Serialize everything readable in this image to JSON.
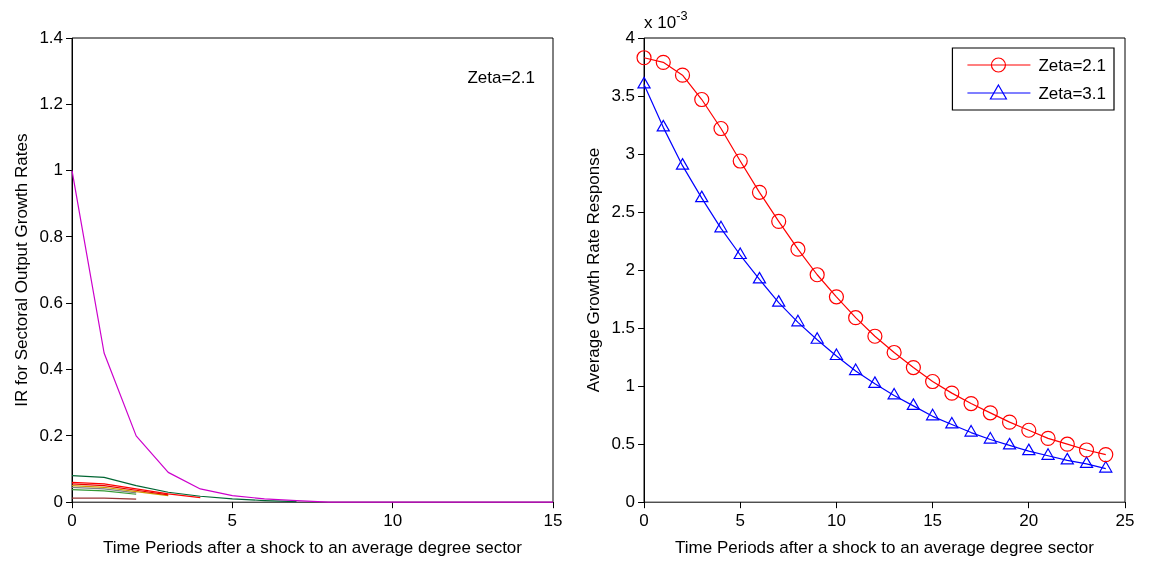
{
  "chart_data": [
    {
      "type": "line",
      "xlabel": "Time Periods after a shock to an average degree sector",
      "ylabel": "IR for Sectoral Output Growth Rates",
      "annotations": [
        "Zeta=2.1"
      ],
      "x": [
        0,
        1,
        2,
        3,
        4,
        5,
        6,
        7,
        8,
        9,
        10,
        11,
        12,
        13,
        14,
        15
      ],
      "xlim": [
        0,
        15
      ],
      "xticks": [
        0,
        5,
        10,
        15
      ],
      "ylim": [
        0,
        1.4
      ],
      "yticks": [
        0,
        0.2,
        0.4,
        0.6,
        0.8,
        1,
        1.2,
        1.4
      ],
      "grid": false,
      "legend": false,
      "marker": "none",
      "line_style": "solid",
      "series": [
        {
          "color": "#cc00cc",
          "values": [
            1,
            0.45,
            0.2,
            0.09,
            0.04,
            0.02,
            0.01,
            0.005,
            0,
            0,
            0,
            0,
            0,
            0,
            0,
            0
          ]
        },
        {
          "color": "#006633",
          "values": [
            0.08,
            0.075,
            0.05,
            0.03,
            0.018,
            0.01,
            0.005,
            0.002,
            null,
            null,
            null,
            null,
            null,
            null,
            null,
            null
          ]
        },
        {
          "color": "#ff0000",
          "values": [
            0.06,
            0.055,
            0.04,
            0.025,
            0.014,
            null,
            null,
            null,
            null,
            null,
            null,
            null,
            null,
            null,
            null,
            null
          ]
        },
        {
          "color": "#e60000",
          "values": [
            0.055,
            0.05,
            0.036,
            0.022,
            null,
            null,
            null,
            null,
            null,
            null,
            null,
            null,
            null,
            null,
            null,
            null
          ]
        },
        {
          "color": "#cc9900",
          "values": [
            0.05,
            0.045,
            0.032,
            0.02,
            null,
            null,
            null,
            null,
            null,
            null,
            null,
            null,
            null,
            null,
            null,
            null
          ]
        },
        {
          "color": "#808080",
          "values": [
            0.045,
            0.04,
            0.028,
            null,
            null,
            null,
            null,
            null,
            null,
            null,
            null,
            null,
            null,
            null,
            null,
            null
          ]
        },
        {
          "color": "#339933",
          "values": [
            0.038,
            0.034,
            0.024,
            null,
            null,
            null,
            null,
            null,
            null,
            null,
            null,
            null,
            null,
            null,
            null,
            null
          ]
        },
        {
          "color": "#993333",
          "values": [
            0.012,
            0.012,
            0.009,
            null,
            null,
            null,
            null,
            null,
            null,
            null,
            null,
            null,
            null,
            null,
            null,
            null
          ]
        }
      ]
    },
    {
      "type": "line",
      "xlabel": "Time Periods after a shock to an average degree sector",
      "ylabel": "Average Growth Rate Response",
      "annotations": [
        "x 10$^{-3}$"
      ],
      "x": [
        0,
        1,
        2,
        3,
        4,
        5,
        6,
        7,
        8,
        9,
        10,
        11,
        12,
        13,
        14,
        15,
        16,
        17,
        18,
        19,
        20,
        21,
        22,
        23,
        24
      ],
      "xlim": [
        0,
        25
      ],
      "xticks": [
        0,
        5,
        10,
        15,
        20,
        25
      ],
      "ylim": [
        0,
        4
      ],
      "yticks": [
        0,
        0.5,
        1,
        1.5,
        2,
        2.5,
        3,
        3.5,
        4
      ],
      "grid": false,
      "legend": "top right",
      "line_style": "solid",
      "series": [
        {
          "name": "Zeta=2.1",
          "color": "#ff0000",
          "marker": "circle",
          "values": [
            3.83,
            3.79,
            3.68,
            3.47,
            3.22,
            2.94,
            2.67,
            2.42,
            2.18,
            1.96,
            1.77,
            1.59,
            1.43,
            1.29,
            1.16,
            1.04,
            0.94,
            0.85,
            0.77,
            0.69,
            0.62,
            0.55,
            0.5,
            0.45,
            0.41
          ]
        },
        {
          "name": "Zeta=3.1",
          "color": "#0000ff",
          "marker": "triangle",
          "values": [
            3.6,
            3.23,
            2.9,
            2.62,
            2.36,
            2.13,
            1.92,
            1.72,
            1.55,
            1.4,
            1.26,
            1.13,
            1.02,
            0.92,
            0.83,
            0.74,
            0.67,
            0.6,
            0.54,
            0.49,
            0.44,
            0.4,
            0.36,
            0.33,
            0.29
          ]
        }
      ]
    }
  ]
}
